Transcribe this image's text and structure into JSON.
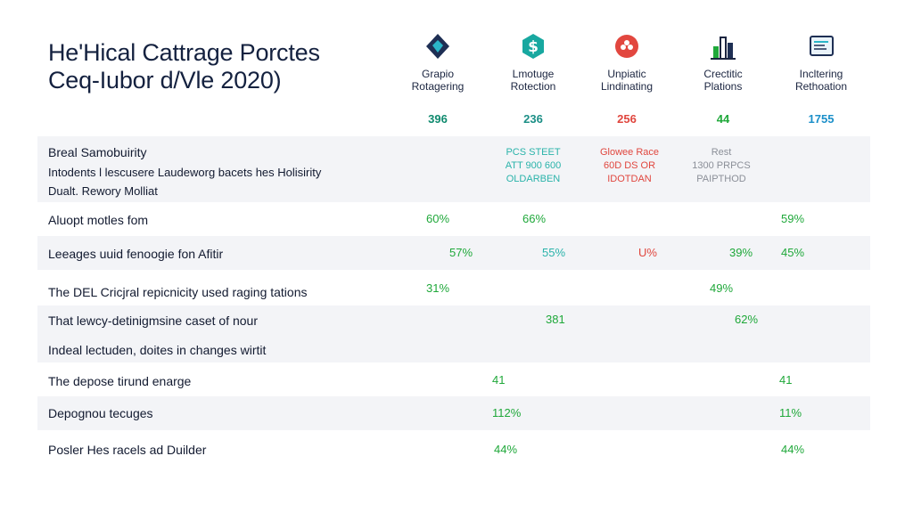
{
  "title": {
    "line1": "He'Hical Cattrage Porctes",
    "line2": "Ceq-Iubor d/Vle 2020)"
  },
  "columns": [
    {
      "icon": "diamond-shield-icon",
      "label1": "Grapio",
      "label2": "Rotagering",
      "value": "396",
      "color": "#0f8a6e"
    },
    {
      "icon": "dollar-shield-icon",
      "label1": "Lmotuge",
      "label2": "Rotection",
      "value": "236",
      "color": "#1c8f86"
    },
    {
      "icon": "flower-badge-icon",
      "label1": "Unpiatic",
      "label2": "Lindinating",
      "value": "256",
      "color": "#e0463e"
    },
    {
      "icon": "bar-chart-icon",
      "label1": "Crectitic",
      "label2": "Plations",
      "value": "44",
      "color": "#1fa83a"
    },
    {
      "icon": "document-chart-icon",
      "label1": "Incltering",
      "label2": "Rethoation",
      "value": "1755",
      "color": "#1b8fc9"
    }
  ],
  "section": {
    "line1": "Breal Samobuirity",
    "line2": "Intodents l lescusere Laudeworg bacets hes Holisirity",
    "line3": "Dualt. Rewory Molliat",
    "c2": [
      "PCS STEET",
      "ATT 900 600",
      "OLDARBEN"
    ],
    "c3": [
      "Glowee Race",
      "60D DS OR",
      "IDOTDAN"
    ],
    "c4": [
      "Rest",
      "1300 PRPCS",
      "PAIPTHOD"
    ]
  },
  "rows": [
    {
      "label": "Aluopt motles fom",
      "values": [
        {
          "text": "60%",
          "color": "green"
        },
        {
          "text": "66%",
          "color": "green"
        },
        {
          "text": "59%",
          "color": "green"
        }
      ]
    },
    {
      "label": "Leeages uuid fenoogie fon Afitir",
      "values": [
        {
          "text": "57%",
          "color": "green"
        },
        {
          "text": "55%",
          "color": "teal"
        },
        {
          "text": "U%",
          "color": "red"
        },
        {
          "text": "39%",
          "color": "green"
        },
        {
          "text": "45%",
          "color": "green"
        }
      ]
    },
    {
      "label": "The DEL Cricjral repicnicity used raging tations",
      "values": [
        {
          "text": "31%",
          "color": "green"
        },
        {
          "text": "49%",
          "color": "green"
        }
      ]
    },
    {
      "label": "That lewcy-detinigmsine caset of nour",
      "values": [
        {
          "text": "381",
          "color": "green"
        },
        {
          "text": "62%",
          "color": "green"
        }
      ]
    },
    {
      "label": "Indeal lectuden, doites in changes wirtit",
      "values": []
    },
    {
      "label": "The depose tirund enarge",
      "values": [
        {
          "text": "41",
          "color": "green"
        },
        {
          "text": "41",
          "color": "green"
        }
      ]
    },
    {
      "label": "Depognou tecuges",
      "values": [
        {
          "text": "112%",
          "color": "green"
        },
        {
          "text": "11%",
          "color": "green"
        }
      ]
    },
    {
      "label": "Posler Hes racels ad Duilder",
      "values": [
        {
          "text": "44%",
          "color": "green"
        },
        {
          "text": "44%",
          "color": "green"
        }
      ]
    }
  ]
}
